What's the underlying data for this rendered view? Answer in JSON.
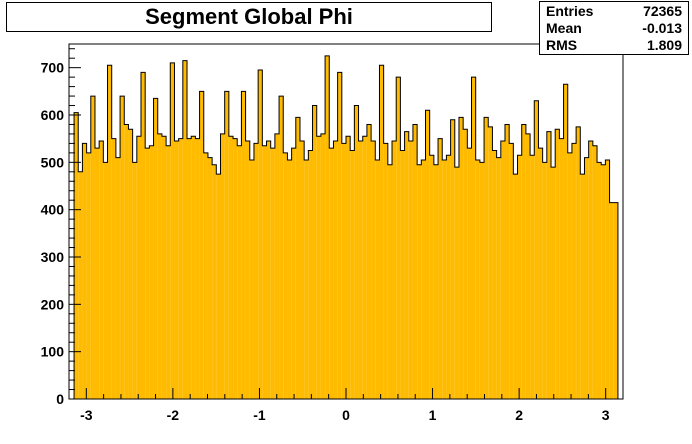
{
  "title": "Segment Global Phi",
  "stats": {
    "entries_label": "Entries",
    "entries_value": "72365",
    "mean_label": "Mean",
    "mean_value": "-0.013",
    "rms_label": "RMS",
    "rms_value": "1.809"
  },
  "colors": {
    "fill": "#ffbb00",
    "line": "#000000",
    "frame": "#000000"
  },
  "chart_data": {
    "type": "bar",
    "title": "Segment Global Phi",
    "xlabel": "",
    "ylabel": "",
    "xlim": [
      -3.2,
      3.2
    ],
    "ylim": [
      0,
      750
    ],
    "xticks": [
      -3,
      -2,
      -1,
      0,
      1,
      2,
      3
    ],
    "xtick_labels": [
      "-3",
      "-2",
      "-1",
      "0",
      "1",
      "2",
      "3"
    ],
    "yticks": [
      0,
      100,
      200,
      300,
      400,
      500,
      600,
      700
    ],
    "ytick_labels": [
      "0",
      "100",
      "200",
      "300",
      "400",
      "500",
      "600",
      "700"
    ],
    "bin_range": [
      -3.1416,
      3.1416
    ],
    "values": [
      605,
      480,
      540,
      520,
      640,
      530,
      545,
      500,
      705,
      550,
      510,
      640,
      580,
      570,
      500,
      555,
      690,
      530,
      535,
      635,
      560,
      555,
      535,
      710,
      545,
      550,
      715,
      550,
      555,
      550,
      650,
      520,
      510,
      495,
      475,
      560,
      650,
      555,
      550,
      535,
      650,
      545,
      505,
      540,
      695,
      535,
      545,
      530,
      560,
      640,
      520,
      505,
      530,
      595,
      545,
      505,
      525,
      620,
      555,
      560,
      725,
      530,
      545,
      690,
      540,
      555,
      525,
      620,
      545,
      555,
      580,
      545,
      505,
      705,
      540,
      495,
      545,
      680,
      525,
      565,
      545,
      580,
      495,
      505,
      610,
      515,
      495,
      550,
      505,
      515,
      590,
      490,
      595,
      570,
      530,
      680,
      505,
      500,
      595,
      575,
      525,
      510,
      545,
      580,
      540,
      475,
      515,
      580,
      560,
      515,
      630,
      530,
      500,
      565,
      490,
      570,
      550,
      665,
      520,
      540,
      575,
      475,
      510,
      545,
      535,
      500,
      495,
      505,
      415,
      415
    ]
  }
}
